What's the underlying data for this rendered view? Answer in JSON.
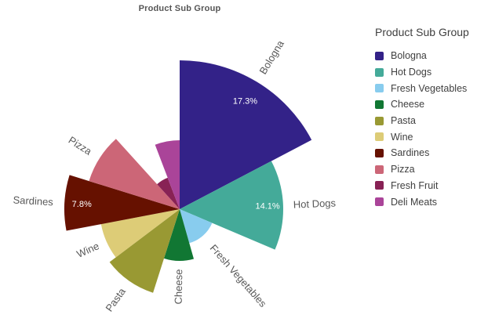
{
  "chart_title": "Product Sub Group",
  "legend": {
    "title": "Product Sub Group",
    "position": "right"
  },
  "chart_data": {
    "type": "pie",
    "variant": "variable-radius pie (slice angle = share of total, slice radius = second measure)",
    "title": "Product Sub Group",
    "legend_position": "right",
    "labels_shown_as": "percent",
    "slices": [
      {
        "label": "Bologna",
        "share_pct": 17.3,
        "pct_label": "17.3%",
        "radius_px": 190,
        "color": "#332288",
        "outer_label_shown": true
      },
      {
        "label": "Hot Dogs",
        "share_pct": 14.1,
        "pct_label": "14.1%",
        "radius_px": 132,
        "color": "#44AA99",
        "outer_label_shown": true
      },
      {
        "label": "Fresh Vegetables",
        "share_pct": 14.2,
        "pct_label": null,
        "radius_px": 45,
        "color": "#88CCEE",
        "outer_label_shown": true
      },
      {
        "label": "Cheese",
        "share_pct": 9.3,
        "pct_label": null,
        "radius_px": 66,
        "color": "#117733",
        "outer_label_shown": true
      },
      {
        "label": "Pasta",
        "share_pct": 9.8,
        "pct_label": null,
        "radius_px": 112,
        "color": "#999933",
        "outer_label_shown": true
      },
      {
        "label": "Wine",
        "share_pct": 7.3,
        "pct_label": null,
        "radius_px": 102,
        "color": "#DDCC77",
        "outer_label_shown": true
      },
      {
        "label": "Sardines",
        "share_pct": 7.8,
        "pct_label": "7.8%",
        "radius_px": 147,
        "color": "#661100",
        "outer_label_shown": true
      },
      {
        "label": "Pizza",
        "share_pct": 8.5,
        "pct_label": null,
        "radius_px": 121,
        "color": "#CC6677",
        "outer_label_shown": true
      },
      {
        "label": "Fresh Fruit",
        "share_pct": 5.9,
        "pct_label": null,
        "radius_px": 43,
        "color": "#882255",
        "outer_label_shown": false
      },
      {
        "label": "Deli Meats",
        "share_pct": 5.8,
        "pct_label": null,
        "radius_px": 88,
        "color": "#AA4499",
        "outer_label_shown": false
      }
    ]
  }
}
